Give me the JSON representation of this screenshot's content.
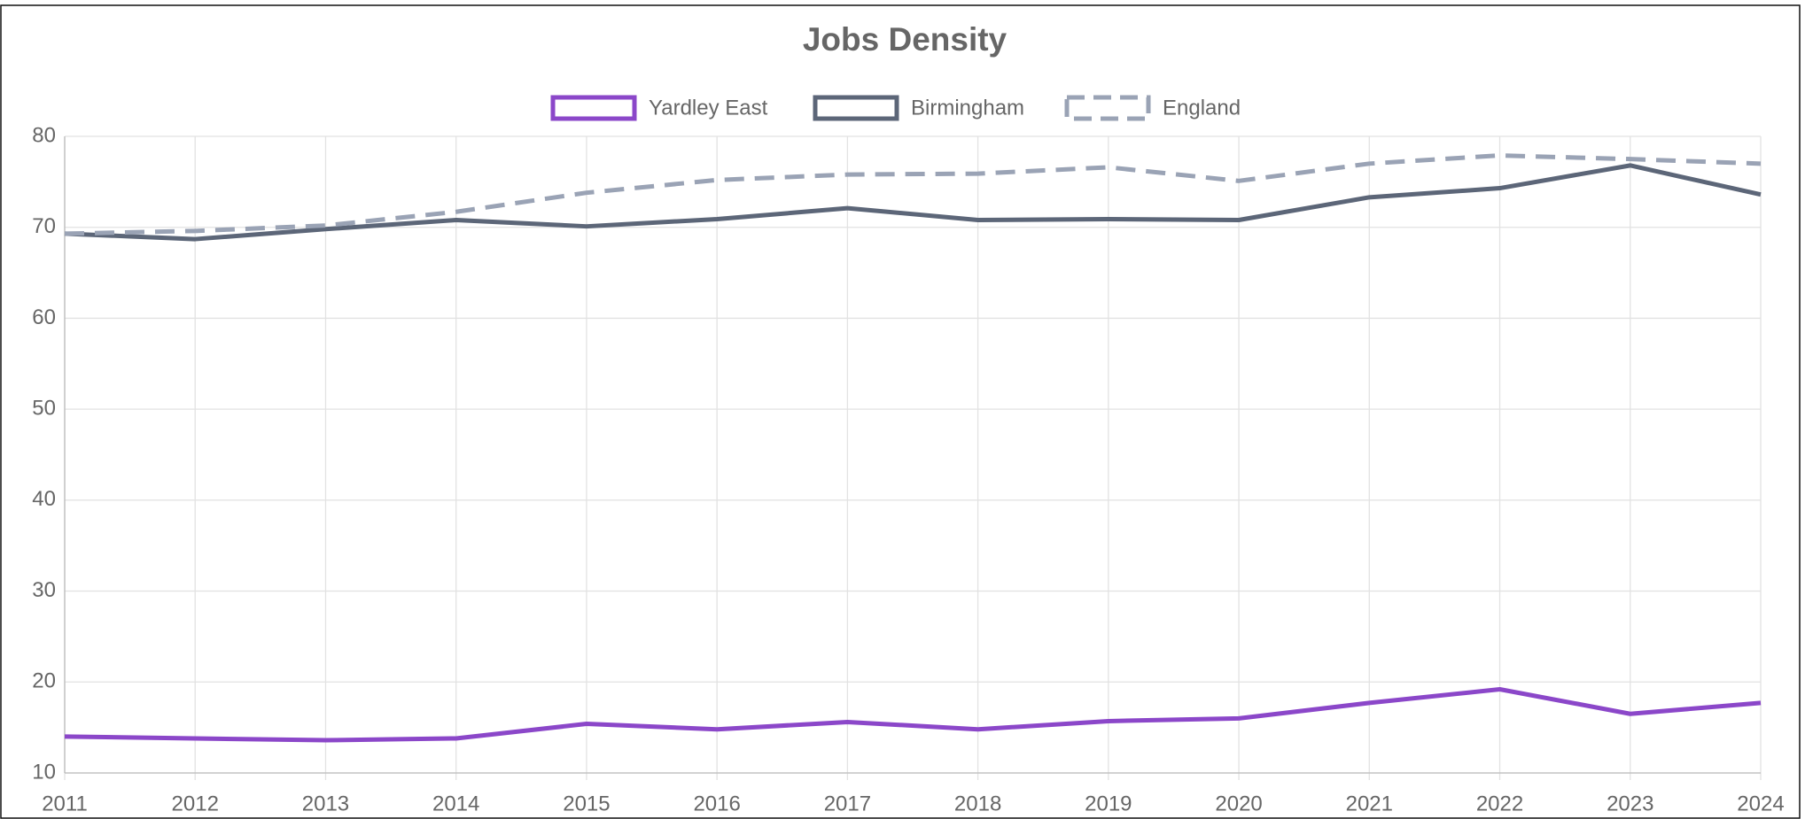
{
  "chart_data": {
    "type": "line",
    "title": "Jobs Density",
    "categories": [
      "2011",
      "2012",
      "2013",
      "2014",
      "2015",
      "2016",
      "2017",
      "2018",
      "2019",
      "2020",
      "2021",
      "2022",
      "2023",
      "2024"
    ],
    "series": [
      {
        "name": "Yardley East",
        "color": "#8b47c9",
        "dashed": false,
        "values": [
          14.0,
          13.8,
          13.6,
          13.8,
          15.4,
          14.8,
          15.6,
          14.8,
          15.7,
          16.0,
          17.7,
          19.2,
          16.5,
          17.7
        ]
      },
      {
        "name": "Birmingham",
        "color": "#5c6678",
        "dashed": false,
        "values": [
          69.3,
          68.7,
          69.8,
          70.8,
          70.1,
          70.9,
          72.1,
          70.8,
          70.9,
          70.8,
          73.3,
          74.3,
          76.8,
          73.6
        ]
      },
      {
        "name": "England",
        "color": "#9aa3b5",
        "dashed": true,
        "values": [
          69.3,
          69.6,
          70.2,
          71.7,
          73.8,
          75.2,
          75.8,
          75.9,
          76.6,
          75.1,
          77.0,
          77.9,
          77.5,
          77.0
        ]
      }
    ],
    "ylim": [
      10,
      80
    ],
    "yticks": [
      10,
      20,
      30,
      40,
      50,
      60,
      70,
      80
    ],
    "grid": true,
    "legend": "top"
  }
}
